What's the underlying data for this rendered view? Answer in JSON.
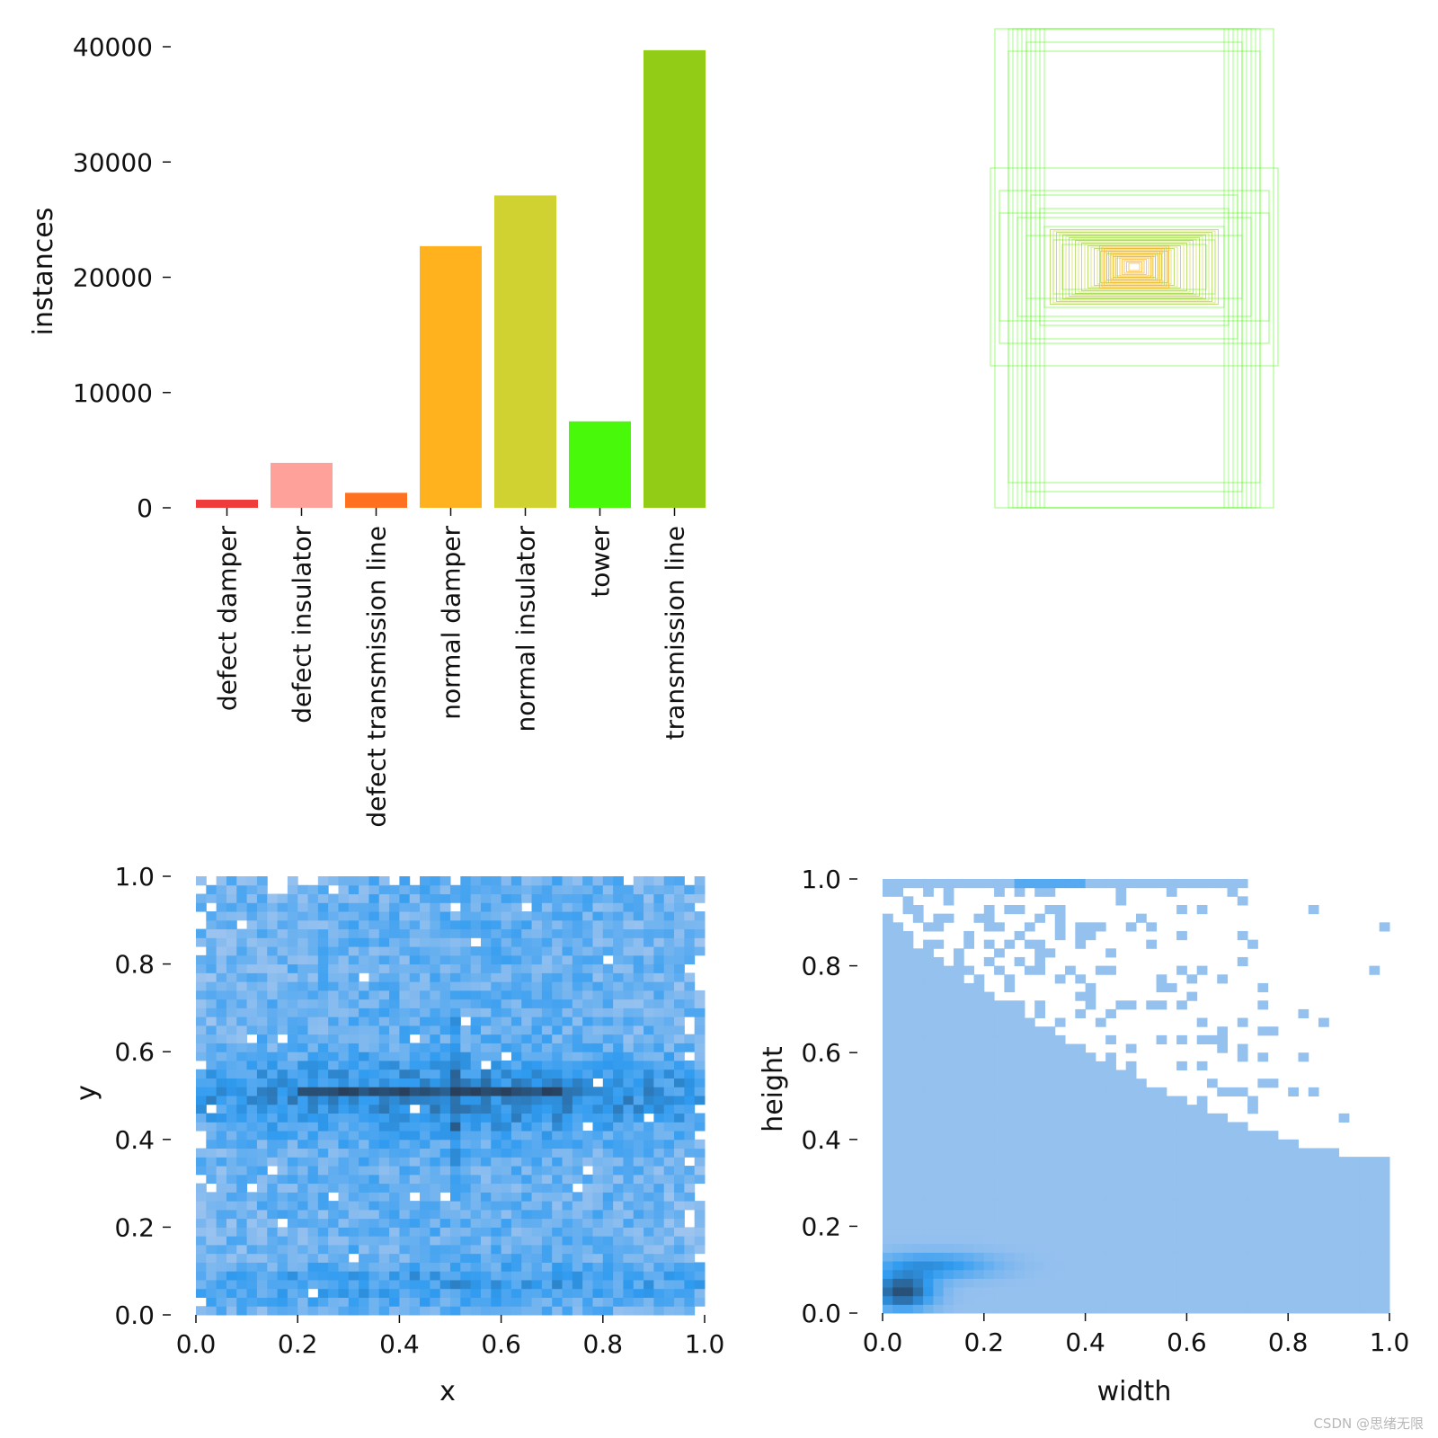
{
  "chart_data": [
    {
      "type": "bar",
      "ylabel": "instances",
      "categories": [
        "defect damper",
        "defect insulator",
        "defect transmission line",
        "normal damper",
        "normal insulator",
        "tower",
        "transmission line"
      ],
      "values": [
        700,
        3900,
        1300,
        22700,
        27100,
        7500,
        39700
      ],
      "colors": [
        "#f03b3b",
        "#ffa19b",
        "#ff701f",
        "#ffb21d",
        "#cfd231",
        "#48f90a",
        "#92cc17"
      ],
      "yticks": [
        0,
        10000,
        20000,
        30000,
        40000
      ],
      "ylim": [
        0,
        40000
      ]
    },
    {
      "type": "scatter",
      "description_kind": "bounding-box overlay",
      "palette": [
        "#48f90a",
        "#92cc17",
        "#cfd231",
        "#ffb21d"
      ]
    },
    {
      "type": "heatmap",
      "xlabel": "x",
      "ylabel": "y",
      "xlim": [
        0.0,
        1.0
      ],
      "ylim": [
        0.0,
        1.0
      ],
      "xticks": [
        "0.0",
        "0.2",
        "0.4",
        "0.6",
        "0.8",
        "1.0"
      ],
      "yticks": [
        "0.0",
        "0.2",
        "0.4",
        "0.6",
        "0.8",
        "1.0"
      ],
      "colors": {
        "low": "#a9c8ef",
        "mid": "#2f9bf0",
        "high": "#28405c"
      }
    },
    {
      "type": "heatmap",
      "xlabel": "width",
      "ylabel": "height",
      "xlim": [
        0.0,
        1.0
      ],
      "ylim": [
        0.0,
        1.0
      ],
      "xticks": [
        "0.0",
        "0.2",
        "0.4",
        "0.6",
        "0.8",
        "1.0"
      ],
      "yticks": [
        "0.0",
        "0.2",
        "0.4",
        "0.6",
        "0.8",
        "1.0"
      ],
      "colors": {
        "low": "#a9c8ef",
        "mid": "#2f9bf0",
        "high": "#28405c"
      }
    }
  ],
  "watermark": "CSDN @思绪无限"
}
